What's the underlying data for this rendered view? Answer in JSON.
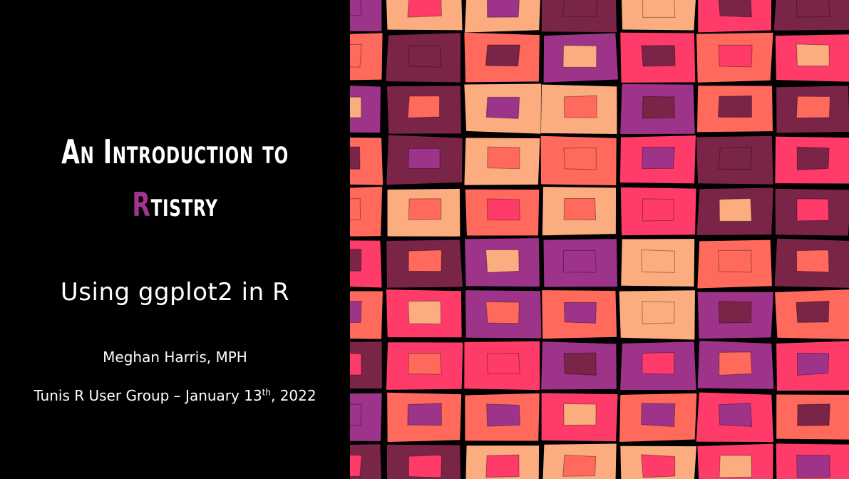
{
  "slide": {
    "title_line1": "An Introduction to",
    "title_line2_accent": "R",
    "title_line2_rest": "tistry",
    "subtitle": "Using ggplot2 in R",
    "author": "Meghan Harris, MPH",
    "event_prefix": "Tunis R User Group – January 13",
    "event_superscript": "th",
    "event_suffix": ", 2022"
  },
  "colors": {
    "background": "#000000",
    "text": "#ffffff",
    "accent": "#a3338f",
    "palette": [
      "#7a2447",
      "#ff3b69",
      "#ff6a5c",
      "#fbad7f",
      "#9e338a"
    ]
  },
  "artwork": {
    "cols": 7,
    "rows": 10,
    "outer": [
      [
        4,
        3,
        3,
        0,
        3,
        1,
        0
      ],
      [
        2,
        0,
        2,
        4,
        1,
        2,
        1
      ],
      [
        4,
        0,
        3,
        3,
        4,
        2,
        0
      ],
      [
        2,
        0,
        3,
        2,
        1,
        0,
        1
      ],
      [
        2,
        3,
        2,
        3,
        1,
        0,
        0
      ],
      [
        1,
        0,
        4,
        4,
        3,
        2,
        0
      ],
      [
        2,
        1,
        4,
        2,
        3,
        4,
        2
      ],
      [
        0,
        1,
        1,
        4,
        4,
        4,
        1
      ],
      [
        4,
        2,
        2,
        1,
        2,
        1,
        2
      ],
      [
        0,
        0,
        3,
        3,
        3,
        1,
        1
      ]
    ],
    "inner": [
      [
        4,
        1,
        4,
        0,
        3,
        0,
        0
      ],
      [
        2,
        0,
        0,
        3,
        0,
        1,
        3
      ],
      [
        3,
        2,
        4,
        2,
        0,
        0,
        2
      ],
      [
        0,
        4,
        2,
        2,
        4,
        0,
        0
      ],
      [
        2,
        2,
        1,
        2,
        1,
        3,
        1
      ],
      [
        0,
        2,
        3,
        4,
        3,
        2,
        2
      ],
      [
        4,
        3,
        2,
        4,
        3,
        0,
        0
      ],
      [
        1,
        2,
        1,
        0,
        1,
        2,
        4
      ],
      [
        4,
        4,
        4,
        3,
        4,
        4,
        0
      ],
      [
        1,
        1,
        1,
        2,
        1,
        3,
        4
      ]
    ]
  }
}
